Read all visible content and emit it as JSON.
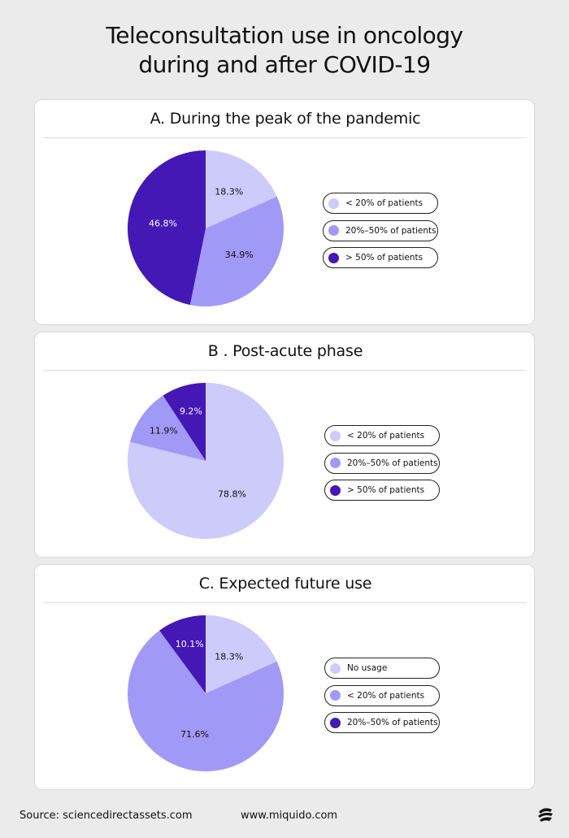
{
  "title_lines": [
    "Teleconsultation use in oncology",
    "during and after COVID-19"
  ],
  "colors": {
    "light": "#cdcbfa",
    "medium": "#a199f6",
    "dark": "#4418b4"
  },
  "chart_data": [
    {
      "type": "pie",
      "title": "A. During the peak of the pandemic",
      "slices": [
        {
          "label": "< 20% of patients",
          "value": 18.3,
          "value_label": "18.3%",
          "color": "#cdcbfa"
        },
        {
          "label": "20%–50% of patients",
          "value": 34.9,
          "value_label": "34.9%",
          "color": "#a199f6"
        },
        {
          "label": "> 50% of patients",
          "value": 46.8,
          "value_label": "46.8%",
          "color": "#4418b4"
        }
      ],
      "legend": [
        "< 20% of patients",
        "20%–50% of patients",
        "> 50% of patients"
      ],
      "legend_placement": "right"
    },
    {
      "type": "pie",
      "title": "B . Post-acute phase",
      "slices": [
        {
          "label": "< 20% of patients",
          "value": 78.8,
          "value_label": "78.8%",
          "color": "#cdcbfa"
        },
        {
          "label": "20%–50% of patients",
          "value": 11.9,
          "value_label": "11.9%",
          "color": "#a199f6"
        },
        {
          "label": "> 50% of patients",
          "value": 9.2,
          "value_label": "9.2%",
          "color": "#4418b4"
        }
      ],
      "legend": [
        "< 20% of patients",
        "20%–50% of patients",
        "> 50% of patients"
      ],
      "legend_placement": "right"
    },
    {
      "type": "pie",
      "title": "C. Expected future use",
      "slices": [
        {
          "label": "No usage",
          "value": 18.3,
          "value_label": "18.3%",
          "color": "#cdcbfa"
        },
        {
          "label": "< 20% of patients",
          "value": 71.6,
          "value_label": "71.6%",
          "color": "#a199f6"
        },
        {
          "label": "20%–50% of patients",
          "value": 10.1,
          "value_label": "10.1%",
          "color": "#4418b4"
        }
      ],
      "legend": [
        "No usage",
        "< 20% of patients",
        "20%–50% of patients"
      ],
      "legend_placement": "right"
    }
  ],
  "footer": {
    "source": "Source: sciencedirectassets.com",
    "site": "www.miquido.com"
  },
  "logo_icon": "miquido-logo-icon"
}
